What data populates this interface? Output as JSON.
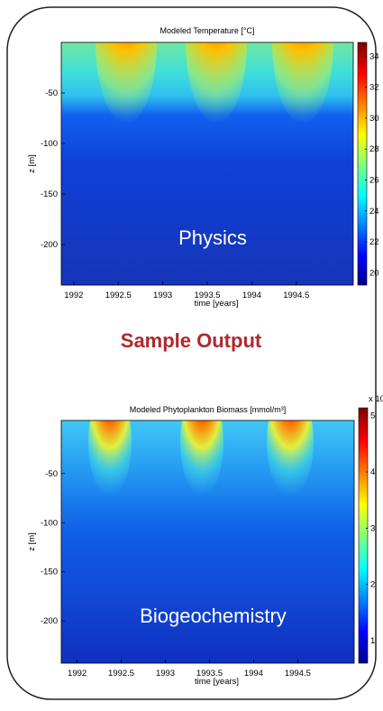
{
  "heading": "Sample Output",
  "panels": [
    {
      "title": "Modeled Temperature [°C]",
      "xlabel": "time [years]",
      "ylabel": "z [m]",
      "xlim": [
        1991.86,
        1995.14
      ],
      "ylim": [
        -240,
        0
      ],
      "xticks": [
        1992,
        1992.5,
        1993,
        1993.5,
        1994,
        1994.5
      ],
      "yticks": [
        -200,
        -150,
        -100,
        -50
      ],
      "colorbar_lim": [
        19.2,
        34.9
      ],
      "colorbar_ticks": [
        20,
        22,
        24,
        26,
        28,
        30,
        32,
        34
      ],
      "label": "Physics"
    },
    {
      "title": "Modeled Phytoplankton Biomass [mmol/m³]",
      "xlabel": "time [years]",
      "ylabel": "z [m]",
      "xlim": [
        1991.82,
        1995.14
      ],
      "ylim": [
        -243,
        4
      ],
      "xticks": [
        1992,
        1992.5,
        1993,
        1993.5,
        1994,
        1994.5
      ],
      "yticks": [
        -200,
        -150,
        -100,
        -50
      ],
      "colorbar_lim": [
        0.6,
        5.14
      ],
      "colorbar_ticks": [
        1,
        2,
        3,
        4,
        5
      ],
      "colorbar_exponent": "x 10",
      "label": "Biogeochemistry"
    }
  ]
}
